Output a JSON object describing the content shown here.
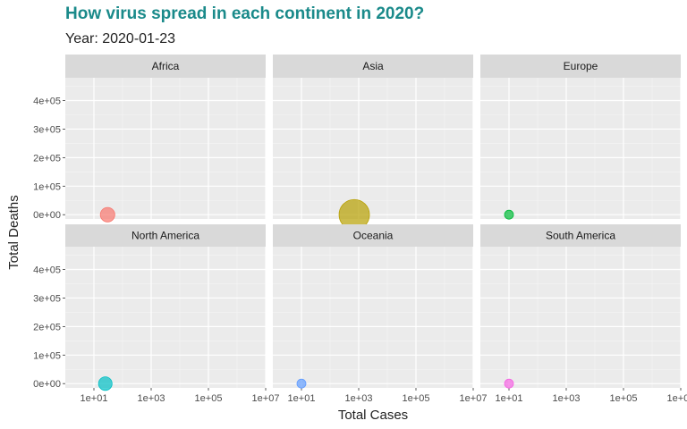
{
  "header": {
    "title": "How virus spread in each continent in 2020?",
    "subtitle": "Year: 2020-01-23"
  },
  "chart_data": {
    "type": "scatter",
    "title": "How virus spread in each continent in 2020?",
    "subtitle": "Year: 2020-01-23",
    "xlabel": "Total Cases",
    "ylabel": "Total Deaths",
    "x_scale": "log10",
    "xlim": [
      1,
      10000000
    ],
    "x_ticks": [
      10,
      1000,
      100000,
      10000000
    ],
    "x_tick_labels": [
      "1e+01",
      "1e+03",
      "1e+05",
      "1e+07"
    ],
    "ylim": [
      -15000,
      480000
    ],
    "y_ticks": [
      0,
      100000,
      200000,
      300000,
      400000
    ],
    "y_tick_labels": [
      "0e+00",
      "1e+05",
      "2e+05",
      "3e+05",
      "4e+05"
    ],
    "grid": true,
    "facets": [
      {
        "name": "Africa",
        "color": "#f8766d",
        "points": [
          {
            "x": 30,
            "y": 0
          }
        ]
      },
      {
        "name": "Asia",
        "color": "#b79f00",
        "points": [
          {
            "x": 700,
            "y": 18
          }
        ]
      },
      {
        "name": "Europe",
        "color": "#00ba38",
        "points": [
          {
            "x": 10,
            "y": 0
          }
        ]
      },
      {
        "name": "North America",
        "color": "#00bfc4",
        "points": [
          {
            "x": 25,
            "y": 0
          }
        ]
      },
      {
        "name": "Oceania",
        "color": "#619cff",
        "points": [
          {
            "x": 10,
            "y": 0
          }
        ]
      },
      {
        "name": "South America",
        "color": "#f564e3",
        "points": [
          {
            "x": 10,
            "y": 0
          }
        ]
      }
    ]
  }
}
